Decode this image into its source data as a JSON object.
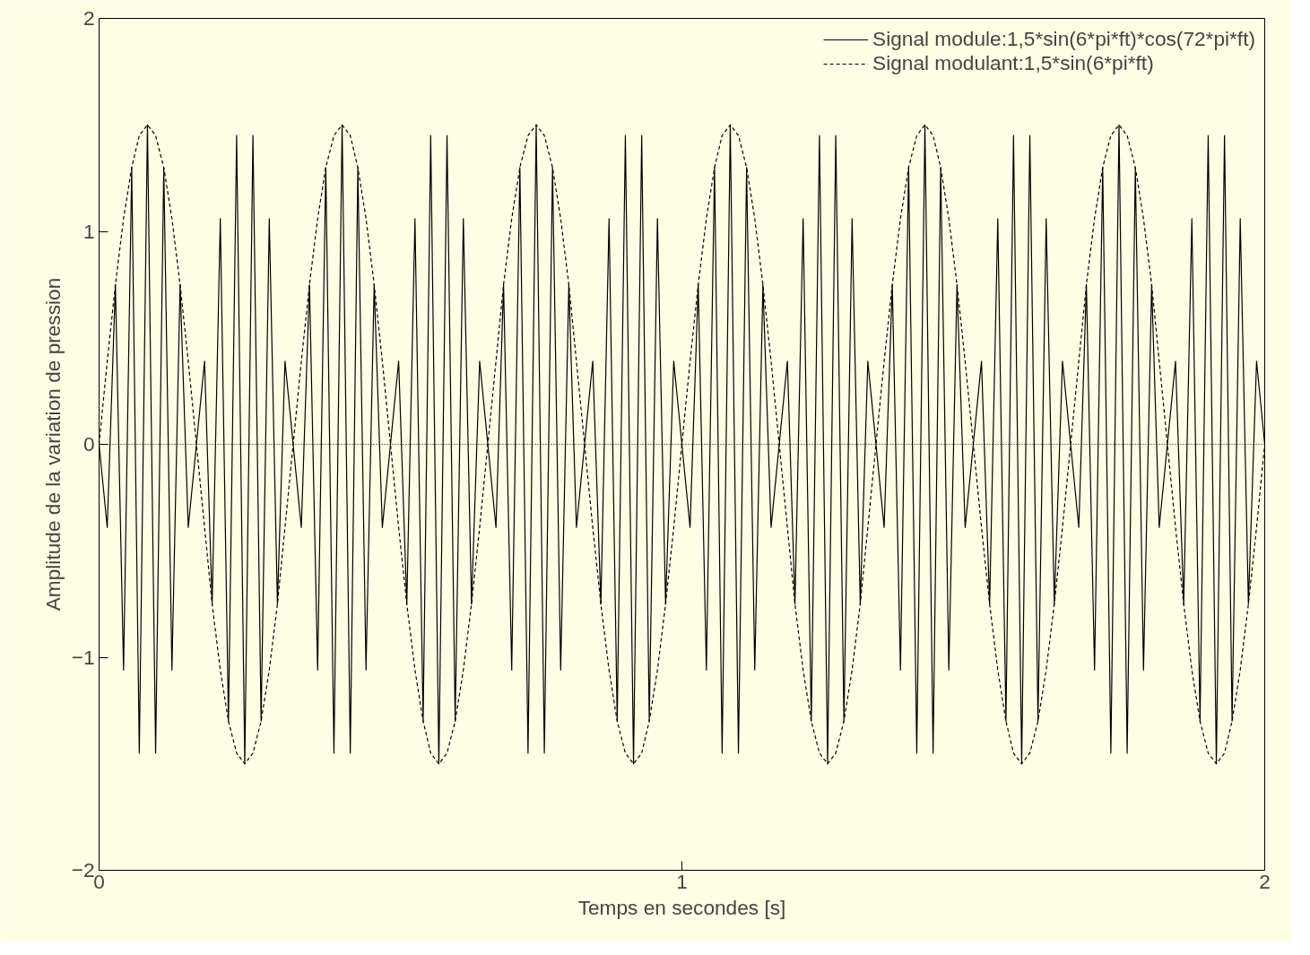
{
  "chart_data": {
    "type": "line",
    "xlabel": "Temps en secondes [s]",
    "ylabel": "Amplitude de la variation de pression",
    "xlim": [
      0,
      2
    ],
    "ylim": [
      -2,
      2
    ],
    "xticks": [
      0,
      1,
      2
    ],
    "yticks": [
      -2,
      -1,
      0,
      1,
      2
    ],
    "grid": false,
    "legend": "top right",
    "marker": "none",
    "x": [
      0,
      0.014,
      0.028,
      0.042,
      0.056,
      0.069,
      0.083,
      0.097,
      0.111,
      0.125,
      0.139,
      0.153,
      0.167,
      0.181,
      0.194,
      0.208,
      0.222,
      0.236,
      0.25,
      0.264,
      0.278,
      0.292,
      0.306,
      0.319,
      0.333,
      0.347,
      0.361,
      0.375,
      0.389,
      0.403,
      0.417,
      0.431,
      0.444,
      0.458,
      0.472,
      0.486,
      0.5,
      0.514,
      0.528,
      0.542,
      0.556,
      0.569,
      0.583,
      0.597,
      0.611,
      0.625,
      0.639,
      0.653,
      0.667,
      0.681,
      0.694,
      0.708,
      0.722,
      0.736,
      0.75,
      0.764,
      0.778,
      0.792,
      0.806,
      0.819,
      0.833,
      0.847,
      0.861,
      0.875,
      0.889,
      0.903,
      0.917,
      0.931,
      0.944,
      0.958,
      0.972,
      0.986,
      1,
      1.014,
      1.028,
      1.042,
      1.056,
      1.069,
      1.083,
      1.097,
      1.111,
      1.125,
      1.139,
      1.153,
      1.167,
      1.181,
      1.194,
      1.208,
      1.222,
      1.236,
      1.25,
      1.264,
      1.278,
      1.292,
      1.306,
      1.319,
      1.333,
      1.347,
      1.361,
      1.375,
      1.389,
      1.403,
      1.417,
      1.431,
      1.444,
      1.458,
      1.472,
      1.486,
      1.5,
      1.514,
      1.528,
      1.542,
      1.556,
      1.569,
      1.583,
      1.597,
      1.611,
      1.625,
      1.639,
      1.653,
      1.667,
      1.681,
      1.694,
      1.708,
      1.722,
      1.736,
      1.75,
      1.764,
      1.778,
      1.792,
      1.806,
      1.819,
      1.833,
      1.847,
      1.861,
      1.875,
      1.889,
      1.903,
      1.917,
      1.931,
      1.944,
      1.958,
      1.972,
      1.986,
      2
    ],
    "series": [
      {
        "name": "Signal module:1,5*sin(6*pi*ft)*cos(72*pi*ft)",
        "color": "#000000",
        "line_style": "solid",
        "values": [
          0,
          -0.39,
          0.75,
          -1.06,
          1.3,
          -1.45,
          1.5,
          -1.45,
          1.3,
          -1.06,
          0.75,
          -0.39,
          0,
          0.39,
          -0.75,
          1.06,
          -1.3,
          1.45,
          -1.5,
          1.45,
          -1.3,
          1.06,
          -0.75,
          0.39,
          0,
          -0.39,
          0.75,
          -1.06,
          1.3,
          -1.45,
          1.5,
          -1.45,
          1.3,
          -1.06,
          0.75,
          -0.39,
          0,
          0.39,
          -0.75,
          1.06,
          -1.3,
          1.45,
          -1.5,
          1.45,
          -1.3,
          1.06,
          -0.75,
          0.39,
          0,
          -0.39,
          0.75,
          -1.06,
          1.3,
          -1.45,
          1.5,
          -1.45,
          1.3,
          -1.06,
          0.75,
          -0.39,
          0,
          0.39,
          -0.75,
          1.06,
          -1.3,
          1.45,
          -1.5,
          1.45,
          -1.3,
          1.06,
          -0.75,
          0.39,
          0,
          -0.39,
          0.75,
          -1.06,
          1.3,
          -1.45,
          1.5,
          -1.45,
          1.3,
          -1.06,
          0.75,
          -0.39,
          0,
          0.39,
          -0.75,
          1.06,
          -1.3,
          1.45,
          -1.5,
          1.45,
          -1.3,
          1.06,
          -0.75,
          0.39,
          0,
          -0.39,
          0.75,
          -1.06,
          1.3,
          -1.45,
          1.5,
          -1.45,
          1.3,
          -1.06,
          0.75,
          -0.39,
          0,
          0.39,
          -0.75,
          1.06,
          -1.3,
          1.45,
          -1.5,
          1.45,
          -1.3,
          1.06,
          -0.75,
          0.39,
          0,
          -0.39,
          0.75,
          -1.06,
          1.3,
          -1.45,
          1.5,
          -1.45,
          1.3,
          -1.06,
          0.75,
          -0.39,
          0,
          0.39,
          -0.75,
          1.06,
          -1.3,
          1.45,
          -1.5,
          1.45,
          -1.3,
          1.06,
          -0.75,
          0.39,
          0
        ]
      },
      {
        "name": "Signal modulant:1,5*sin(6*pi*ft)",
        "color": "#000000",
        "line_style": "dashed",
        "values": [
          0,
          0.39,
          0.75,
          1.06,
          1.3,
          1.45,
          1.5,
          1.45,
          1.3,
          1.06,
          0.75,
          0.39,
          0,
          -0.39,
          -0.75,
          -1.06,
          -1.3,
          -1.45,
          -1.5,
          -1.45,
          -1.3,
          -1.06,
          -0.75,
          -0.39,
          0,
          0.39,
          0.75,
          1.06,
          1.3,
          1.45,
          1.5,
          1.45,
          1.3,
          1.06,
          0.75,
          0.39,
          0,
          -0.39,
          -0.75,
          -1.06,
          -1.3,
          -1.45,
          -1.5,
          -1.45,
          -1.3,
          -1.06,
          -0.75,
          -0.39,
          0,
          0.39,
          0.75,
          1.06,
          1.3,
          1.45,
          1.5,
          1.45,
          1.3,
          1.06,
          0.75,
          0.39,
          0,
          -0.39,
          -0.75,
          -1.06,
          -1.3,
          -1.45,
          -1.5,
          -1.45,
          -1.3,
          -1.06,
          -0.75,
          -0.39,
          0,
          0.39,
          0.75,
          1.06,
          1.3,
          1.45,
          1.5,
          1.45,
          1.3,
          1.06,
          0.75,
          0.39,
          0,
          -0.39,
          -0.75,
          -1.06,
          -1.3,
          -1.45,
          -1.5,
          -1.45,
          -1.3,
          -1.06,
          -0.75,
          -0.39,
          0,
          0.39,
          0.75,
          1.06,
          1.3,
          1.45,
          1.5,
          1.45,
          1.3,
          1.06,
          0.75,
          0.39,
          0,
          -0.39,
          -0.75,
          -1.06,
          -1.3,
          -1.45,
          -1.5,
          -1.45,
          -1.3,
          -1.06,
          -0.75,
          -0.39,
          0,
          0.39,
          0.75,
          1.06,
          1.3,
          1.45,
          1.5,
          1.45,
          1.3,
          1.06,
          0.75,
          0.39,
          0,
          -0.39,
          -0.75,
          -1.06,
          -1.3,
          -1.45,
          -1.5,
          -1.45,
          -1.3,
          -1.06,
          -0.75,
          -0.39,
          0
        ]
      }
    ],
    "ref_lines": [
      {
        "axis": "y",
        "value": 0,
        "color": "#000000",
        "line_style": "dotted"
      }
    ]
  }
}
